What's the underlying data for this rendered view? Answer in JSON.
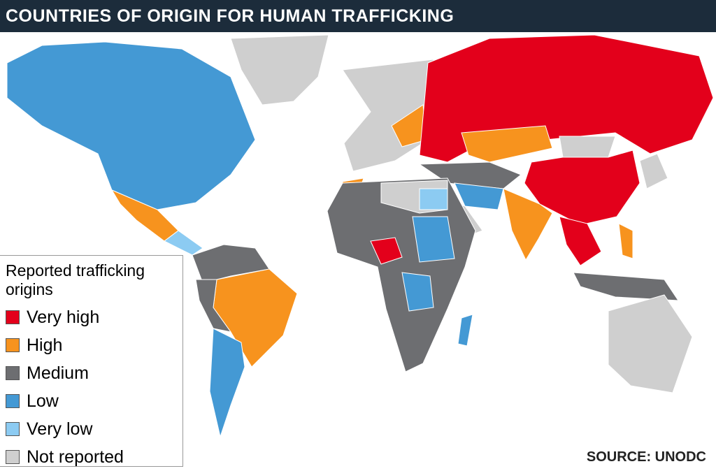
{
  "header": {
    "title": "COUNTRIES OF ORIGIN FOR HUMAN TRAFFICKING"
  },
  "legend": {
    "title": "Reported trafficking origins",
    "items": [
      {
        "label": "Very high",
        "color": "#e3001b"
      },
      {
        "label": "High",
        "color": "#f7931e"
      },
      {
        "label": "Medium",
        "color": "#6d6e71"
      },
      {
        "label": "Low",
        "color": "#4499d4"
      },
      {
        "label": "Very low",
        "color": "#8ccbf2"
      },
      {
        "label": "Not reported",
        "color": "#cfcfcf"
      }
    ]
  },
  "source": "SOURCE: UNODC"
}
